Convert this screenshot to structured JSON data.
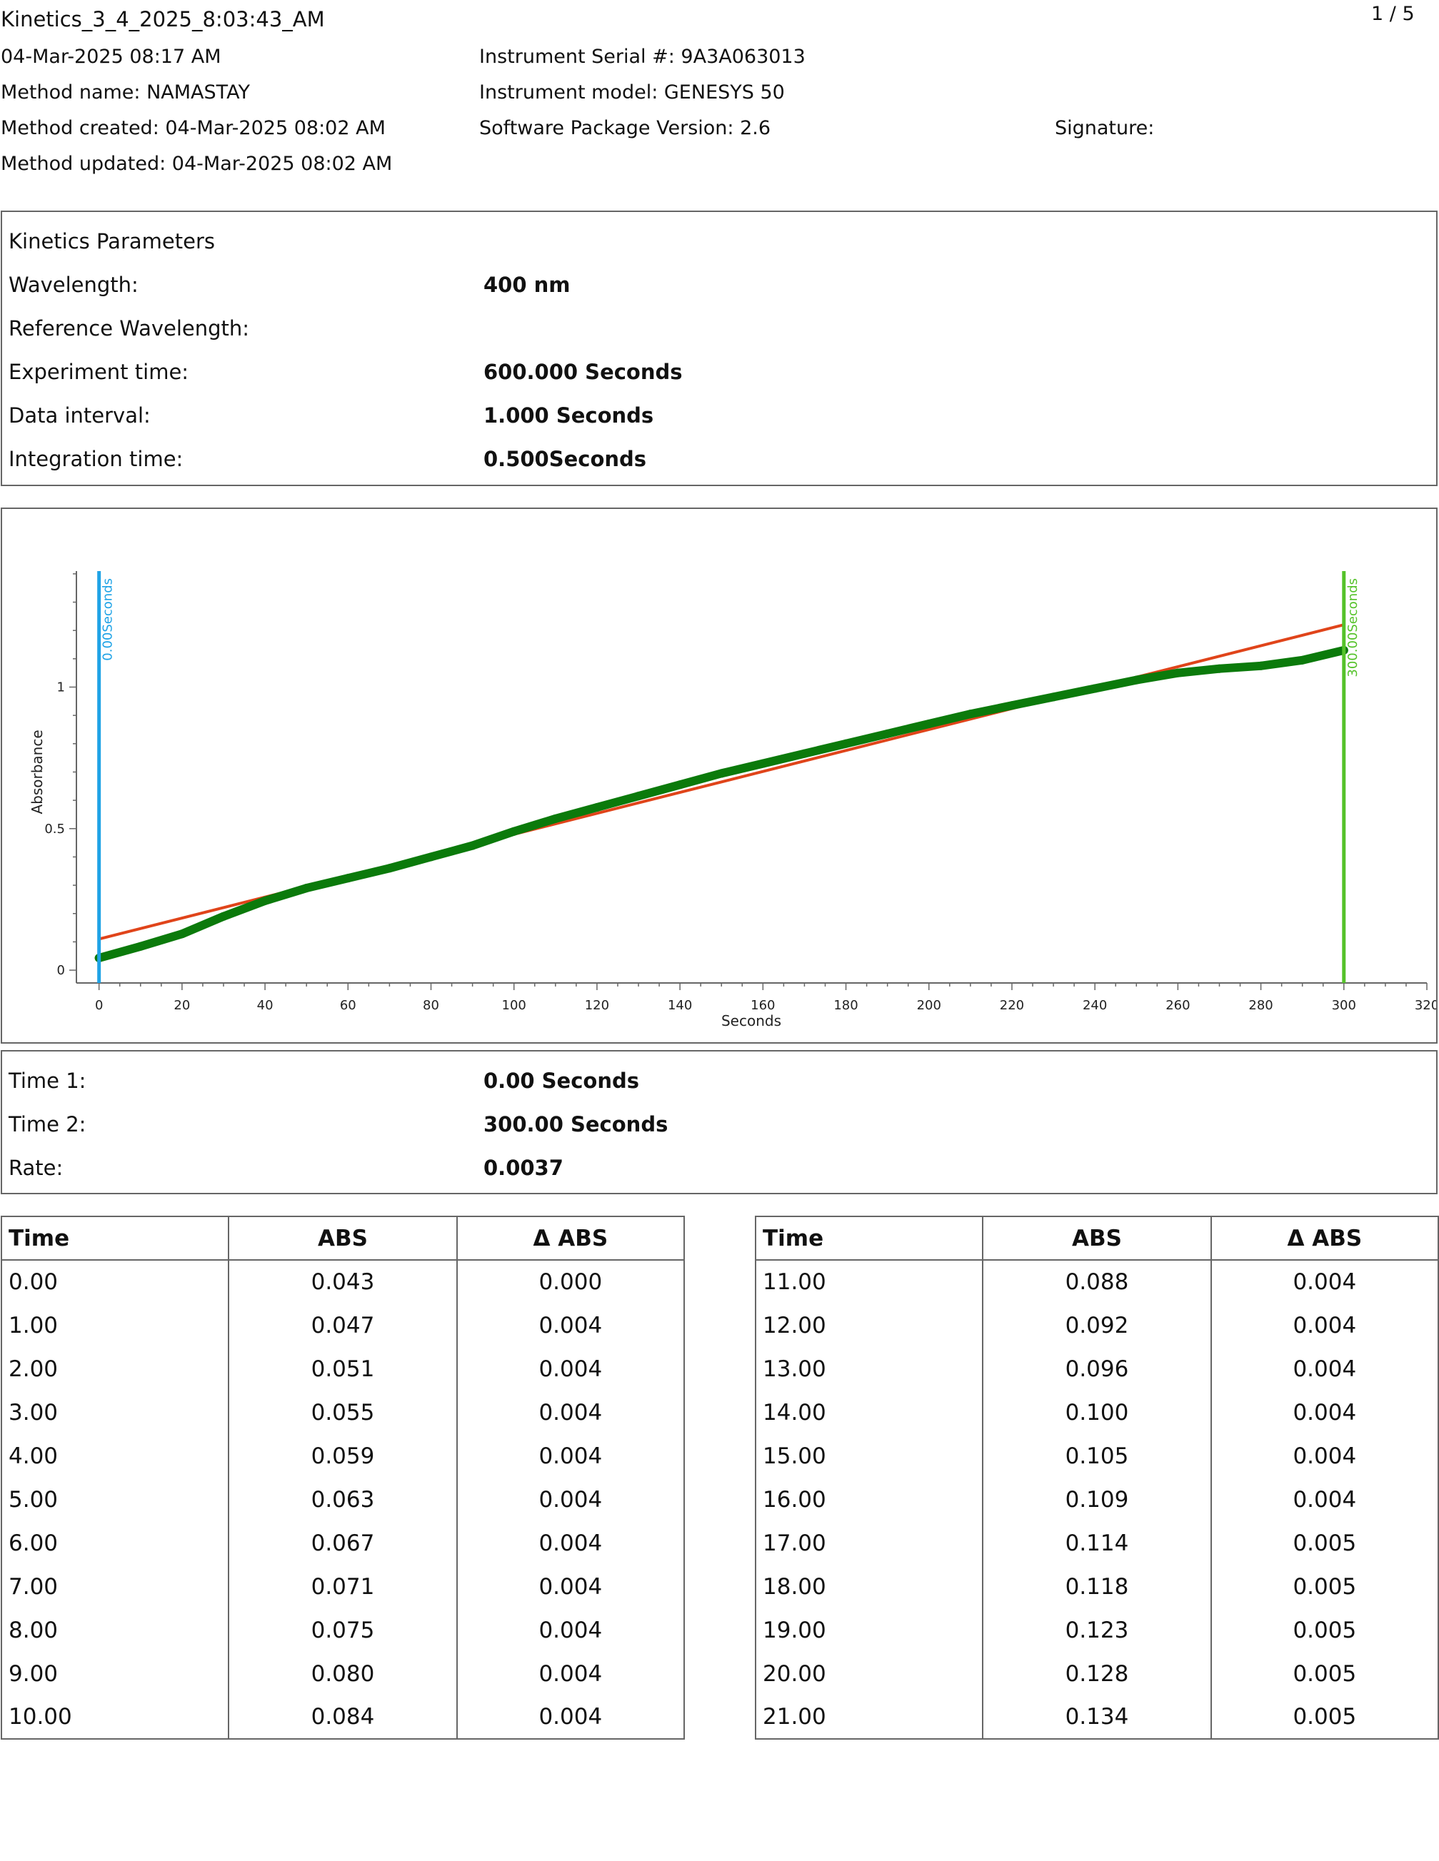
{
  "header": {
    "title": "Kinetics_3_4_2025_8:03:43_AM",
    "page": "1 / 5",
    "date": "04-Mar-2025 08:17 AM",
    "method_name": "Method name: NAMASTAY",
    "method_created": "Method created: 04-Mar-2025 08:02 AM",
    "method_updated": "Method updated: 04-Mar-2025 08:02 AM",
    "serial": "Instrument Serial #: 9A3A063013",
    "model": "Instrument model: GENESYS 50",
    "software": "Software Package Version: 2.6",
    "signature": "Signature:"
  },
  "params": {
    "heading": "Kinetics Parameters",
    "rows": [
      {
        "label": "Wavelength:",
        "value": "400 nm"
      },
      {
        "label": "Reference Wavelength:",
        "value": ""
      },
      {
        "label": "Experiment time:",
        "value": "600.000 Seconds"
      },
      {
        "label": "Data interval:",
        "value": "1.000 Seconds"
      },
      {
        "label": "Integration time:",
        "value": "0.500Seconds"
      }
    ]
  },
  "chart_data": {
    "type": "line",
    "xlabel": "Seconds",
    "ylabel": "Absorbance",
    "xlim": [
      -7,
      320
    ],
    "ylim": [
      -0.02,
      1.44
    ],
    "xticks": [
      0,
      20,
      40,
      60,
      80,
      100,
      120,
      140,
      160,
      180,
      200,
      220,
      240,
      260,
      280,
      300,
      320
    ],
    "yticks": [
      0,
      0.5,
      1
    ],
    "ytick_labels": [
      "0",
      "0.5",
      "1"
    ],
    "grid": false,
    "colors": {
      "data": "#0b7a0b",
      "fit": "#e0441a",
      "marker1": "#1fa3e6",
      "marker2": "#55c22a"
    },
    "markers": [
      {
        "x": 0,
        "label": "0.00Seconds"
      },
      {
        "x": 300,
        "label": "300.00Seconds"
      }
    ],
    "series": [
      {
        "x": [
          0,
          10,
          20,
          30,
          40,
          50,
          60,
          70,
          80,
          90,
          100,
          110,
          120,
          130,
          140,
          150,
          160,
          170,
          180,
          190,
          200,
          210,
          220,
          230,
          240,
          250,
          260,
          270,
          280,
          290,
          300
        ],
        "y": [
          0.043,
          0.084,
          0.128,
          0.19,
          0.245,
          0.29,
          0.325,
          0.36,
          0.4,
          0.44,
          0.49,
          0.535,
          0.575,
          0.615,
          0.655,
          0.695,
          0.73,
          0.765,
          0.8,
          0.835,
          0.87,
          0.905,
          0.935,
          0.965,
          0.995,
          1.025,
          1.05,
          1.065,
          1.075,
          1.095,
          1.13
        ]
      }
    ],
    "fit_line": {
      "x": [
        0,
        300
      ],
      "y": [
        0.11,
        1.22
      ]
    }
  },
  "results": {
    "rows": [
      {
        "label": "Time 1:",
        "value": "0.00 Seconds"
      },
      {
        "label": "Time 2:",
        "value": "300.00 Seconds"
      },
      {
        "label": "Rate:",
        "value": "0.0037"
      }
    ]
  },
  "table": {
    "headers": [
      "Time",
      "ABS",
      "Δ ABS"
    ],
    "left": [
      [
        "0.00",
        "0.043",
        "0.000"
      ],
      [
        "1.00",
        "0.047",
        "0.004"
      ],
      [
        "2.00",
        "0.051",
        "0.004"
      ],
      [
        "3.00",
        "0.055",
        "0.004"
      ],
      [
        "4.00",
        "0.059",
        "0.004"
      ],
      [
        "5.00",
        "0.063",
        "0.004"
      ],
      [
        "6.00",
        "0.067",
        "0.004"
      ],
      [
        "7.00",
        "0.071",
        "0.004"
      ],
      [
        "8.00",
        "0.075",
        "0.004"
      ],
      [
        "9.00",
        "0.080",
        "0.004"
      ],
      [
        "10.00",
        "0.084",
        "0.004"
      ]
    ],
    "right": [
      [
        "11.00",
        "0.088",
        "0.004"
      ],
      [
        "12.00",
        "0.092",
        "0.004"
      ],
      [
        "13.00",
        "0.096",
        "0.004"
      ],
      [
        "14.00",
        "0.100",
        "0.004"
      ],
      [
        "15.00",
        "0.105",
        "0.004"
      ],
      [
        "16.00",
        "0.109",
        "0.004"
      ],
      [
        "17.00",
        "0.114",
        "0.005"
      ],
      [
        "18.00",
        "0.118",
        "0.005"
      ],
      [
        "19.00",
        "0.123",
        "0.005"
      ],
      [
        "20.00",
        "0.128",
        "0.005"
      ],
      [
        "21.00",
        "0.134",
        "0.005"
      ]
    ]
  }
}
